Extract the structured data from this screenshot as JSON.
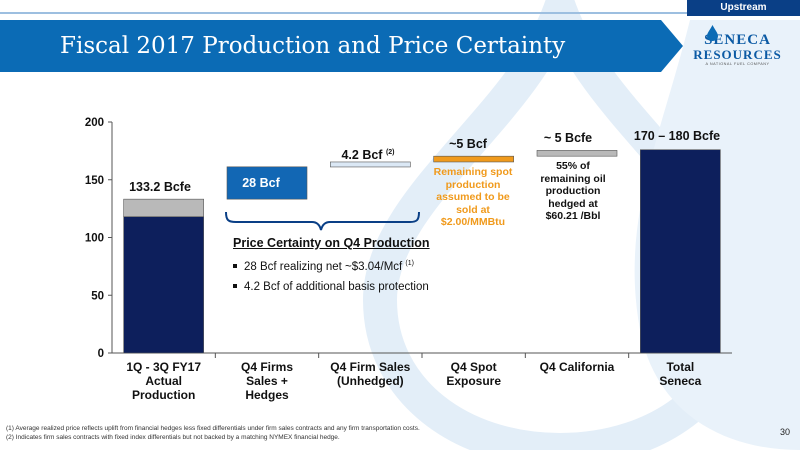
{
  "header": {
    "section_tag": "Upstream",
    "title": "Fiscal 2017 Production and Price Certainty"
  },
  "logo": {
    "word1": "SENECA",
    "word2": "RESOURCES",
    "tagline": "A NATIONAL FUEL COMPANY"
  },
  "colors": {
    "title_bar": "#0b6bb5",
    "bar_navy": "#0d1f5c",
    "bar_gray": "#b9b9b9",
    "bar_blue": "#1267b4",
    "bar_light_blue": "#dbe8f5",
    "bar_orange": "#f09a1c",
    "orange_text": "#f09a1c"
  },
  "chart_data": {
    "type": "bar",
    "subtype": "waterfall",
    "ylim": [
      0,
      200
    ],
    "yticks": [
      "0",
      "50",
      "100",
      "150",
      "200"
    ],
    "categories": [
      "1Q - 3Q FY17 Actual Production",
      "Q4 Firms Sales + Hedges",
      "Q4 Firm Sales (Unhedged)",
      "Q4 Spot Exposure",
      "Q4 California",
      "Total Seneca"
    ],
    "category_labels": [
      [
        "1Q - 3Q FY17",
        "Actual",
        "Production"
      ],
      [
        "Q4 Firms",
        "Sales +",
        "Hedges"
      ],
      [
        "Q4 Firm Sales",
        "(Unhedged)"
      ],
      [
        "Q4 Spot",
        "Exposure"
      ],
      [
        "Q4 California"
      ],
      [
        "Total",
        "Seneca"
      ]
    ],
    "segments": [
      {
        "category": 0,
        "base": 0,
        "value": 118,
        "color": "bar_navy"
      },
      {
        "category": 0,
        "base": 118,
        "value": 15.2,
        "color": "bar_gray"
      },
      {
        "category": 1,
        "base": 133.2,
        "value": 28,
        "color": "bar_blue"
      },
      {
        "category": 2,
        "base": 161.2,
        "value": 4.2,
        "color": "bar_light_blue"
      },
      {
        "category": 3,
        "base": 165.4,
        "value": 5,
        "color": "bar_orange"
      },
      {
        "category": 4,
        "base": 170.4,
        "value": 5,
        "color": "bar_gray"
      },
      {
        "category": 5,
        "base": 0,
        "value": 176,
        "color": "bar_navy"
      }
    ],
    "value_labels": {
      "actual": "133.2 Bcfe",
      "firm_hedges": "28 Bcf",
      "firm_unhedged": "4.2 Bcf",
      "firm_unhedged_ref": "(2)",
      "spot": "~5 Bcf",
      "california": "~ 5 Bcfe",
      "total": "170 – 180 Bcfe"
    },
    "annotations": {
      "spot_note": [
        "Remaining spot",
        "production",
        "assumed to be",
        "sold at",
        "$2.00/MMBtu"
      ],
      "california_note": [
        "55% of",
        "remaining oil",
        "production",
        "hedged at",
        "$60.21 /Bbl"
      ]
    }
  },
  "certainty": {
    "title": "Price Certainty on Q4 Production",
    "bullet1": "28 Bcf realizing net ~$3.04/Mcf",
    "bullet1_ref": "(1)",
    "bullet2": "4.2 Bcf of additional basis protection"
  },
  "footnotes": {
    "note1": "(1)   Average realized price reflects uplift from financial hedges less fixed differentials under firm sales contracts and any firm transportation costs.",
    "note2": "(2)   Indicates firm sales contracts with fixed index differentials but not backed by a matching NYMEX financial hedge."
  },
  "page_number": "30"
}
